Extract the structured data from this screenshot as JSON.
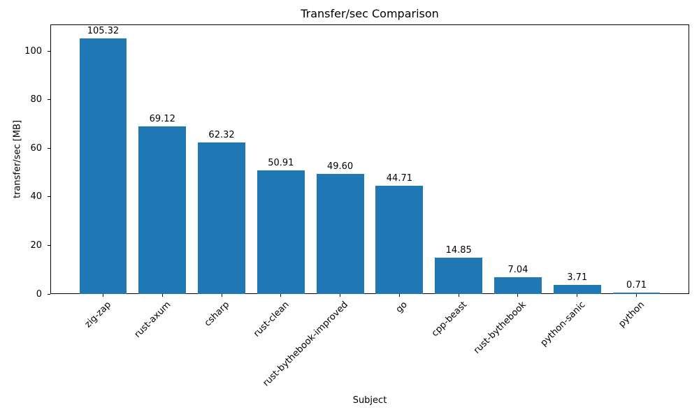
{
  "chart_data": {
    "type": "bar",
    "title": "Transfer/sec Comparison",
    "xlabel": "Subject",
    "ylabel": "transfer/sec [MB]",
    "categories": [
      "zig-zap",
      "rust-axum",
      "csharp",
      "rust-clean",
      "rust-bythebook-improved",
      "go",
      "cpp-beast",
      "rust-bythebook",
      "python-sanic",
      "python"
    ],
    "values": [
      105.32,
      69.12,
      62.32,
      50.91,
      49.6,
      44.71,
      14.85,
      7.04,
      3.71,
      0.71
    ],
    "value_labels": [
      "105.32",
      "69.12",
      "62.32",
      "50.91",
      "49.60",
      "44.71",
      "14.85",
      "7.04",
      "3.71",
      "0.71"
    ],
    "yticks": [
      0,
      20,
      40,
      60,
      80,
      100
    ],
    "ylim": [
      0,
      111
    ],
    "bar_color": "#1f77b4",
    "grid": false,
    "legend": null
  }
}
